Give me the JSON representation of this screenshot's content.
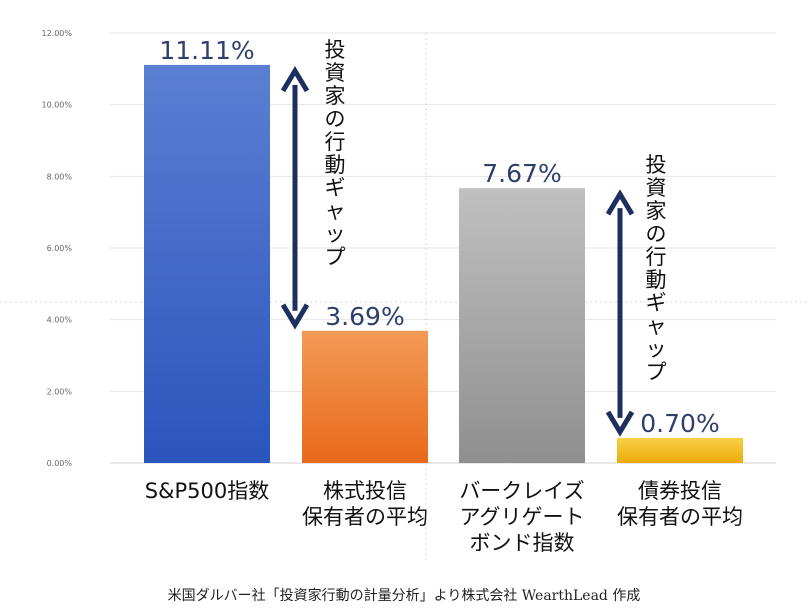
{
  "chart_data": {
    "type": "bar",
    "ylim": [
      0,
      12
    ],
    "y_ticks": [
      "0.00%",
      "2.00%",
      "4.00%",
      "6.00%",
      "8.00%",
      "10.00%",
      "12.00%"
    ],
    "grid": true,
    "categories": [
      [
        "S&P500指数"
      ],
      [
        "株式投信",
        "保有者の平均"
      ],
      [
        "バークレイズ",
        "アグリゲート",
        "ボンド指数"
      ],
      [
        "債券投信",
        "保有者の平均"
      ]
    ],
    "values": [
      11.11,
      3.69,
      7.67,
      0.7
    ],
    "value_labels": [
      "11.11%",
      "3.69%",
      "7.67%",
      "0.70%"
    ],
    "bar_colors": [
      [
        "#5a7fd2",
        "#2b55bd"
      ],
      [
        "#f39a56",
        "#e8691a"
      ],
      [
        "#c0c0c0",
        "#8f8f8f"
      ],
      [
        "#f8d148",
        "#eeaa08"
      ]
    ],
    "annotations": [
      {
        "label": "投資家の行動ギャップ",
        "from": 11.11,
        "to": 3.69
      },
      {
        "label": "投資家の行動ギャップ",
        "from": 7.67,
        "to": 0.7
      }
    ],
    "annotation_color": "#1d2f5e"
  },
  "caption": "米国ダルバー社「投資家行動の計量分析」より株式会社 WearthLead 作成"
}
